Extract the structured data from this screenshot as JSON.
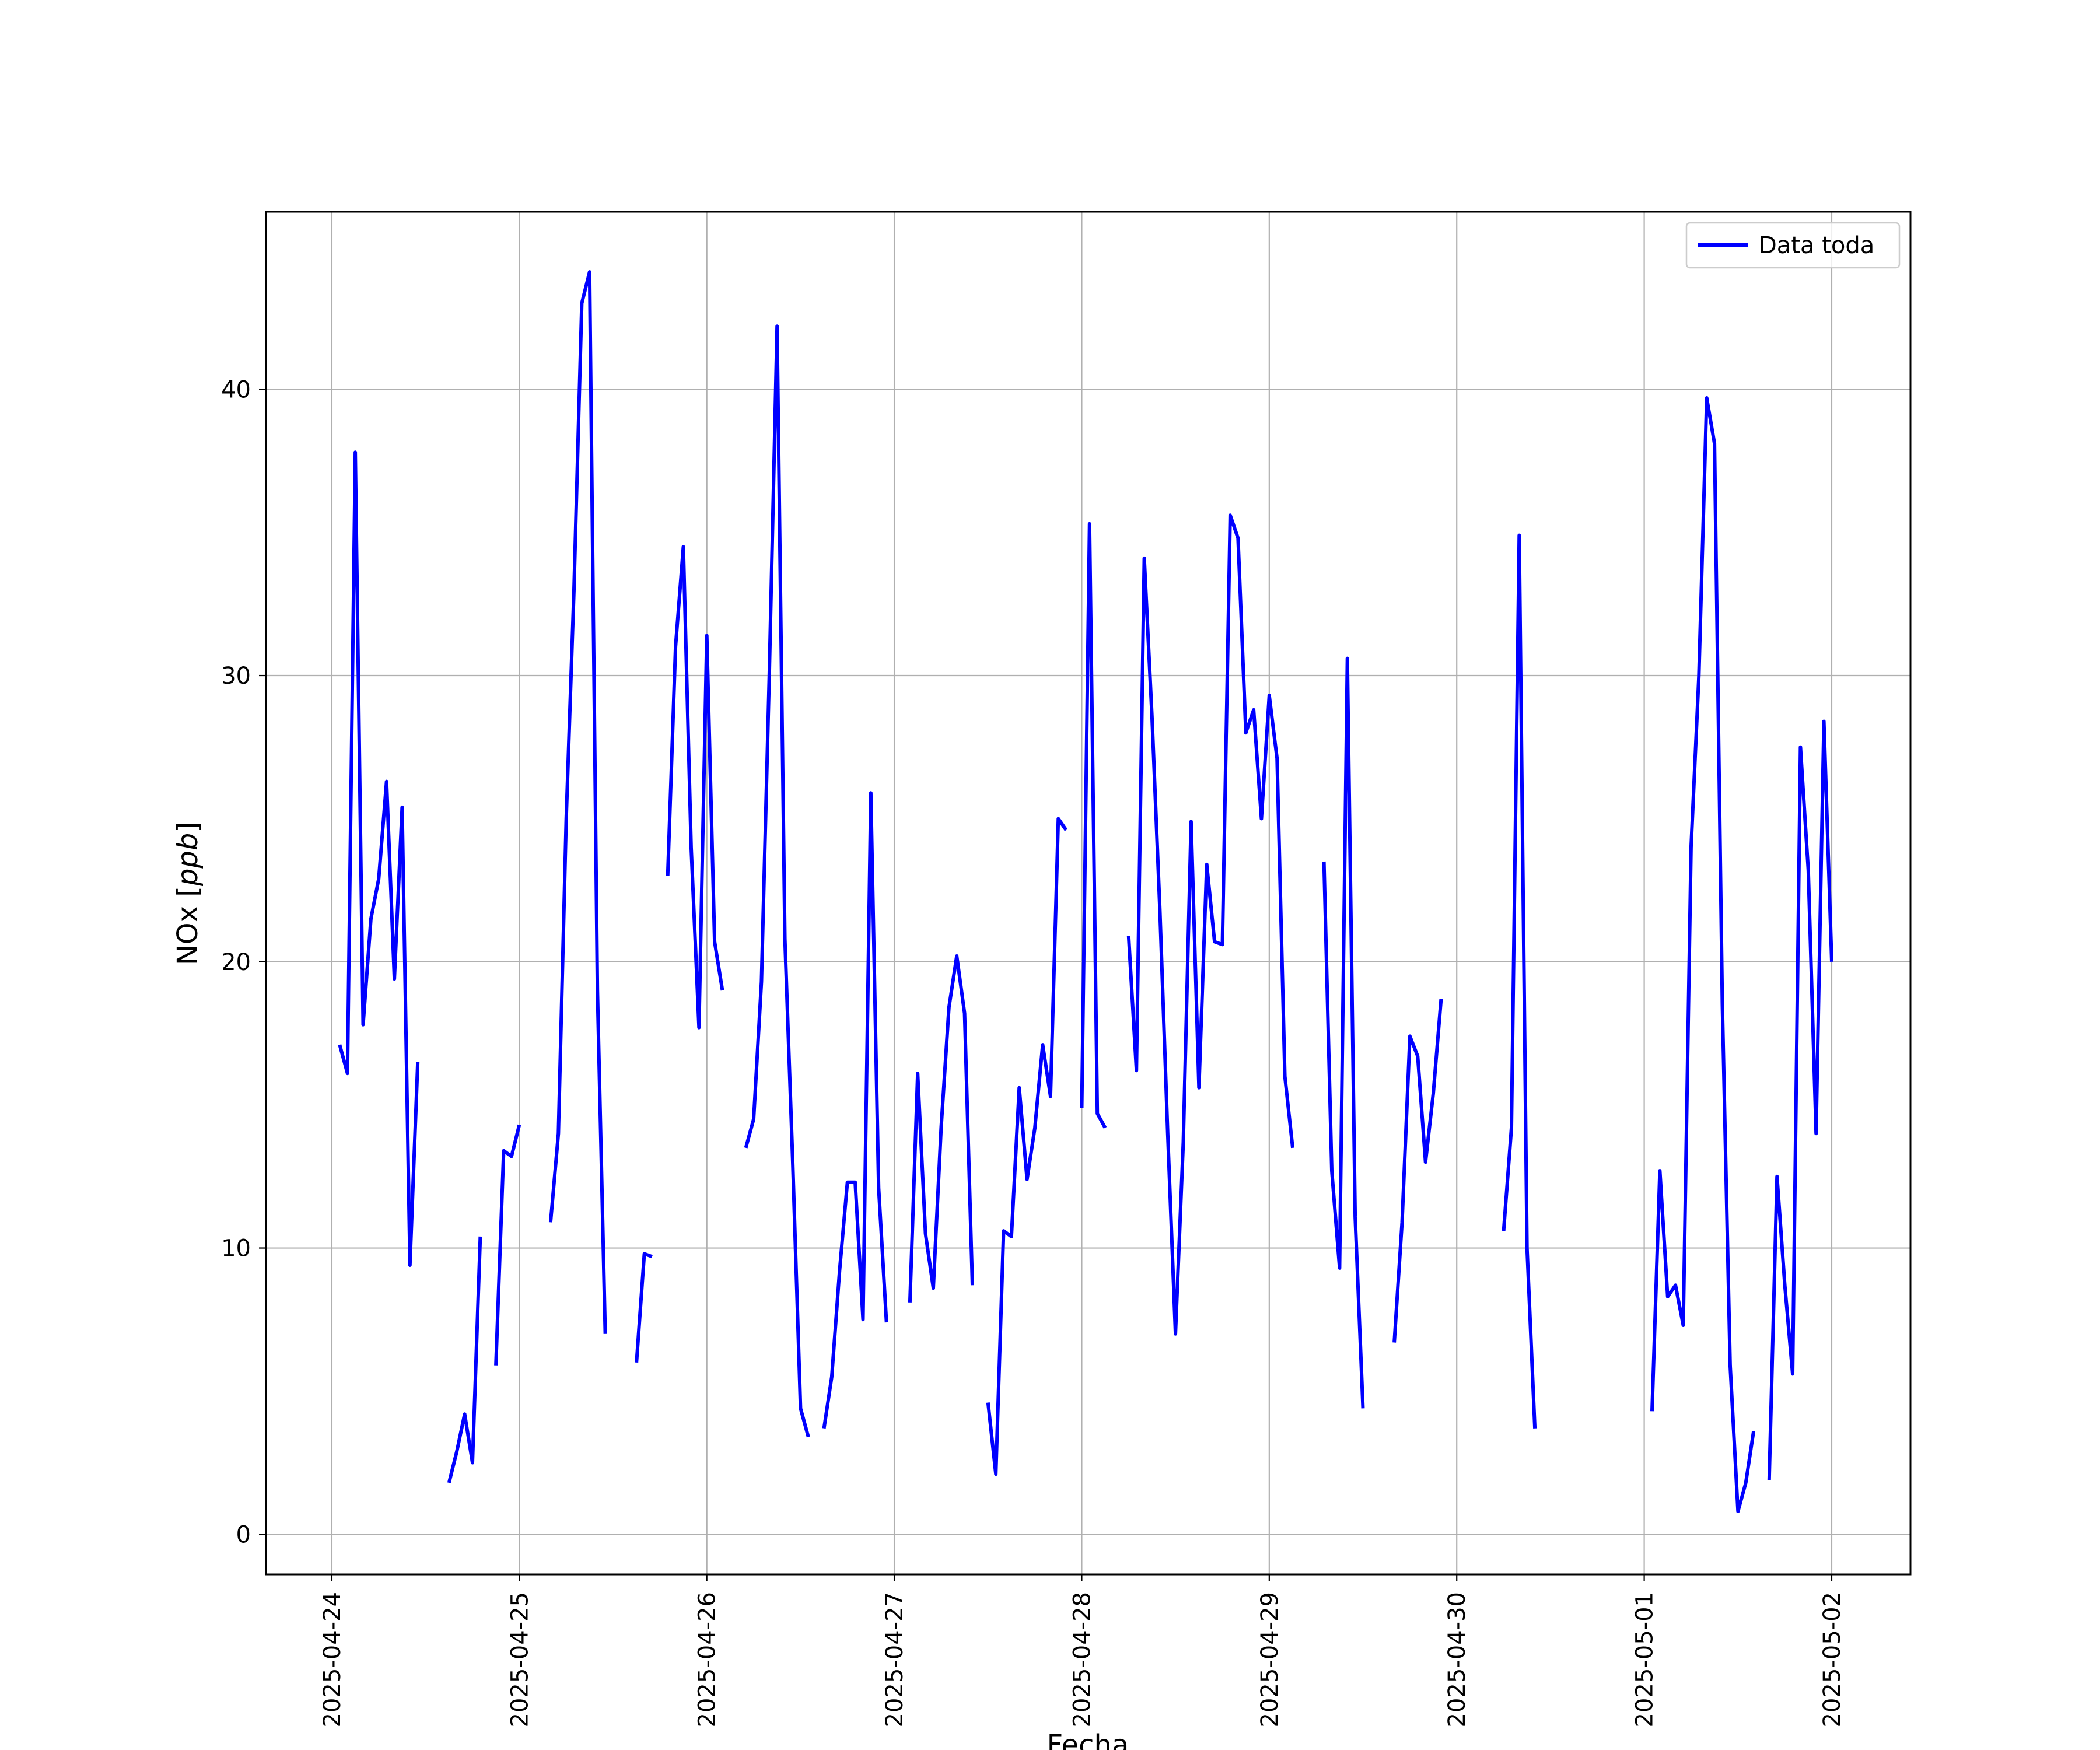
{
  "chart_data": {
    "type": "line",
    "title": "",
    "xlabel": "Fecha",
    "ylabel_prefix": "NOx [",
    "ylabel_unit": "ppb",
    "ylabel_suffix": "]",
    "x_ticks": [
      "2025-04-24",
      "2025-04-25",
      "2025-04-26",
      "2025-04-27",
      "2025-04-28",
      "2025-04-29",
      "2025-04-30",
      "2025-05-01",
      "2025-05-02"
    ],
    "y_ticks": [
      "0",
      "10",
      "20",
      "30",
      "40"
    ],
    "xlim": [
      "2025-04-23 15:34",
      "2025-05-02 10:05"
    ],
    "ylim": [
      -1.4,
      46.2
    ],
    "grid": true,
    "legend_position": "upper right",
    "series": [
      {
        "name": "Data toda",
        "color": "#0000ff",
        "segments": [
          [
            [
              "2025-04-24 01:00",
              17.1
            ],
            [
              "2025-04-24 02:00",
              16.1
            ],
            [
              "2025-04-24 03:00",
              37.8
            ],
            [
              "2025-04-24 04:00",
              17.8
            ],
            [
              "2025-04-24 05:00",
              21.5
            ],
            [
              "2025-04-24 06:00",
              22.9
            ],
            [
              "2025-04-24 07:00",
              26.3
            ],
            [
              "2025-04-24 08:00",
              19.4
            ],
            [
              "2025-04-24 09:00",
              25.4
            ],
            [
              "2025-04-24 10:00",
              9.4
            ],
            [
              "2025-04-24 11:00",
              16.5
            ]
          ],
          [
            [
              "2025-04-24 15:00",
              1.8
            ],
            [
              "2025-04-24 16:00",
              2.9
            ],
            [
              "2025-04-24 17:00",
              4.2
            ],
            [
              "2025-04-24 18:00",
              2.5
            ],
            [
              "2025-04-24 19:00",
              10.4
            ]
          ],
          [
            [
              "2025-04-24 21:00",
              5.9
            ],
            [
              "2025-04-24 22:00",
              13.4
            ],
            [
              "2025-04-24 23:00",
              13.2
            ],
            [
              "2025-04-25 00:00",
              14.3
            ]
          ],
          [
            [
              "2025-04-25 04:00",
              10.9
            ],
            [
              "2025-04-25 05:00",
              14.0
            ],
            [
              "2025-04-25 06:00",
              25.0
            ],
            [
              "2025-04-25 07:00",
              33.0
            ],
            [
              "2025-04-25 08:00",
              43.0
            ],
            [
              "2025-04-25 09:00",
              44.1
            ],
            [
              "2025-04-25 10:00",
              19.0
            ],
            [
              "2025-04-25 11:00",
              7.0
            ]
          ],
          [
            [
              "2025-04-25 15:00",
              6.0
            ],
            [
              "2025-04-25 16:00",
              9.8
            ],
            [
              "2025-04-25 17:00",
              9.7
            ]
          ],
          [
            [
              "2025-04-25 19:00",
              23.0
            ],
            [
              "2025-04-25 20:00",
              31.0
            ],
            [
              "2025-04-25 21:00",
              34.5
            ],
            [
              "2025-04-25 22:00",
              24.0
            ],
            [
              "2025-04-25 23:00",
              17.7
            ],
            [
              "2025-04-26 00:00",
              31.4
            ],
            [
              "2025-04-26 01:00",
              20.7
            ],
            [
              "2025-04-26 02:00",
              19.0
            ]
          ],
          [
            [
              "2025-04-26 05:00",
              13.5
            ],
            [
              "2025-04-26 06:00",
              14.5
            ],
            [
              "2025-04-26 07:00",
              19.3
            ],
            [
              "2025-04-26 08:00",
              30.0
            ],
            [
              "2025-04-26 09:00",
              42.2
            ],
            [
              "2025-04-26 10:00",
              20.8
            ],
            [
              "2025-04-26 11:00",
              13.0
            ],
            [
              "2025-04-26 12:00",
              4.4
            ],
            [
              "2025-04-26 13:00",
              3.4
            ]
          ],
          [
            [
              "2025-04-26 15:00",
              3.7
            ],
            [
              "2025-04-26 16:00",
              5.5
            ],
            [
              "2025-04-26 17:00",
              9.2
            ],
            [
              "2025-04-26 18:00",
              12.3
            ],
            [
              "2025-04-26 19:00",
              12.3
            ],
            [
              "2025-04-26 20:00",
              7.5
            ],
            [
              "2025-04-26 21:00",
              25.9
            ],
            [
              "2025-04-26 22:00",
              12.1
            ],
            [
              "2025-04-26 23:00",
              7.4
            ]
          ],
          [
            [
              "2025-04-27 02:00",
              8.1
            ],
            [
              "2025-04-27 03:00",
              16.1
            ],
            [
              "2025-04-27 04:00",
              10.5
            ],
            [
              "2025-04-27 05:00",
              8.6
            ],
            [
              "2025-04-27 06:00",
              14.2
            ],
            [
              "2025-04-27 07:00",
              18.4
            ],
            [
              "2025-04-27 08:00",
              20.2
            ],
            [
              "2025-04-27 09:00",
              18.2
            ],
            [
              "2025-04-27 10:00",
              8.7
            ]
          ],
          [
            [
              "2025-04-27 12:00",
              4.6
            ],
            [
              "2025-04-27 13:00",
              2.1
            ],
            [
              "2025-04-27 14:00",
              10.6
            ],
            [
              "2025-04-27 15:00",
              10.4
            ],
            [
              "2025-04-27 16:00",
              15.6
            ],
            [
              "2025-04-27 17:00",
              12.4
            ],
            [
              "2025-04-27 18:00",
              14.2
            ],
            [
              "2025-04-27 19:00",
              17.1
            ],
            [
              "2025-04-27 20:00",
              15.3
            ],
            [
              "2025-04-27 21:00",
              25.0
            ],
            [
              "2025-04-27 22:00",
              24.6
            ]
          ],
          [
            [
              "2025-04-28 00:00",
              14.9
            ],
            [
              "2025-04-28 01:00",
              35.3
            ],
            [
              "2025-04-28 02:00",
              14.7
            ],
            [
              "2025-04-28 03:00",
              14.2
            ]
          ],
          [
            [
              "2025-04-28 06:00",
              20.9
            ],
            [
              "2025-04-28 07:00",
              16.2
            ],
            [
              "2025-04-28 08:00",
              34.1
            ],
            [
              "2025-04-28 09:00",
              28.5
            ],
            [
              "2025-04-28 10:00",
              21.8
            ],
            [
              "2025-04-28 11:00",
              14.0
            ],
            [
              "2025-04-28 12:00",
              7.0
            ],
            [
              "2025-04-28 13:00",
              13.7
            ],
            [
              "2025-04-28 14:00",
              24.9
            ],
            [
              "2025-04-28 15:00",
              15.6
            ],
            [
              "2025-04-28 16:00",
              23.4
            ],
            [
              "2025-04-28 17:00",
              20.7
            ],
            [
              "2025-04-28 18:00",
              20.6
            ],
            [
              "2025-04-28 19:00",
              35.6
            ],
            [
              "2025-04-28 20:00",
              34.8
            ],
            [
              "2025-04-28 21:00",
              28.0
            ],
            [
              "2025-04-28 22:00",
              28.8
            ],
            [
              "2025-04-28 23:00",
              25.0
            ],
            [
              "2025-04-29 00:00",
              29.3
            ],
            [
              "2025-04-29 01:00",
              27.1
            ],
            [
              "2025-04-29 02:00",
              16.0
            ],
            [
              "2025-04-29 03:00",
              13.5
            ]
          ],
          [
            [
              "2025-04-29 07:00",
              23.5
            ],
            [
              "2025-04-29 08:00",
              12.7
            ],
            [
              "2025-04-29 09:00",
              9.3
            ],
            [
              "2025-04-29 10:00",
              30.6
            ],
            [
              "2025-04-29 11:00",
              11.1
            ],
            [
              "2025-04-29 12:00",
              4.4
            ]
          ],
          [
            [
              "2025-04-29 16:00",
              6.7
            ],
            [
              "2025-04-29 17:00",
              10.9
            ],
            [
              "2025-04-29 18:00",
              17.4
            ],
            [
              "2025-04-29 19:00",
              16.7
            ],
            [
              "2025-04-29 20:00",
              13.0
            ],
            [
              "2025-04-29 21:00",
              15.4
            ],
            [
              "2025-04-29 22:00",
              18.7
            ]
          ],
          [
            [
              "2025-04-30 06:00",
              10.6
            ],
            [
              "2025-04-30 07:00",
              14.2
            ],
            [
              "2025-04-30 08:00",
              34.9
            ],
            [
              "2025-04-30 09:00",
              10.0
            ],
            [
              "2025-04-30 10:00",
              3.7
            ]
          ],
          [
            [
              "2025-05-01 01:00",
              4.3
            ],
            [
              "2025-05-01 02:00",
              12.7
            ],
            [
              "2025-05-01 03:00",
              8.3
            ],
            [
              "2025-05-01 04:00",
              8.7
            ],
            [
              "2025-05-01 05:00",
              7.3
            ],
            [
              "2025-05-01 06:00",
              24.0
            ],
            [
              "2025-05-01 07:00",
              30.0
            ],
            [
              "2025-05-01 08:00",
              39.7
            ],
            [
              "2025-05-01 09:00",
              38.1
            ],
            [
              "2025-05-01 10:00",
              18.5
            ],
            [
              "2025-05-01 11:00",
              5.9
            ],
            [
              "2025-05-01 12:00",
              0.8
            ],
            [
              "2025-05-01 13:00",
              1.8
            ],
            [
              "2025-05-01 14:00",
              3.6
            ]
          ],
          [
            [
              "2025-05-01 16:00",
              1.9
            ],
            [
              "2025-05-01 17:00",
              12.5
            ],
            [
              "2025-05-01 18:00",
              8.7
            ],
            [
              "2025-05-01 19:00",
              5.6
            ],
            [
              "2025-05-01 20:00",
              27.5
            ],
            [
              "2025-05-01 21:00",
              23.2
            ],
            [
              "2025-05-01 22:00",
              14.0
            ],
            [
              "2025-05-01 23:00",
              28.4
            ],
            [
              "2025-05-02 00:00",
              20.0
            ]
          ]
        ]
      }
    ]
  }
}
